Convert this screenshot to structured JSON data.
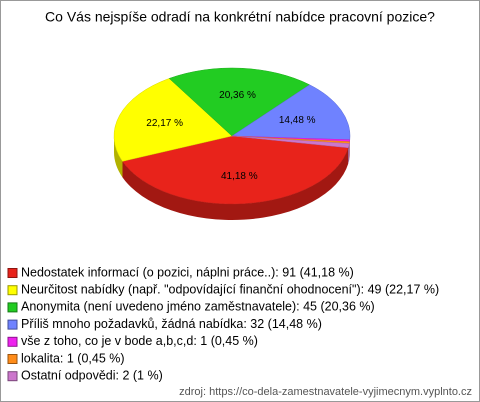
{
  "chart_data": {
    "type": "pie3d",
    "title": "Co Vás nejspíše odradí na konkrétní nabídce pracovní pozice?",
    "categories": [
      "Nedostatek informací (o pozici, náplni práce..): 91 (41,18 %)",
      "Neurčitost nabídky (např. \"odpovídající finanční ohodnocení\"): 49 (22,17 %)",
      "Anonymita (není uvedeno jméno zaměstnavatele): 45 (20,36 %)",
      "Příliš mnoho požadavků, žádná nabídka: 32 (14,48 %)",
      "vše z toho, co je v bode a,b,c,d: 1 (0,45 %)",
      "lokalita: 1 (0,45 %)",
      "Ostatní odpovědi: 2 (1 %)"
    ],
    "values": [
      41.18,
      22.17,
      20.36,
      14.48,
      0.45,
      0.45,
      1
    ],
    "value_labels": [
      "41,18 %",
      "22,17 %",
      "20,36 %",
      "14,48 %",
      null,
      null,
      null
    ],
    "colors": [
      "#e8231b",
      "#ffff00",
      "#22cc22",
      "#6f82ff",
      "#ee22ee",
      "#ff8c1a",
      "#cc77cc"
    ],
    "legend": "bottom",
    "source": "zdroj: https://co-dela-zamestnavatele-vyjimecnym.vyplnto.cz"
  }
}
